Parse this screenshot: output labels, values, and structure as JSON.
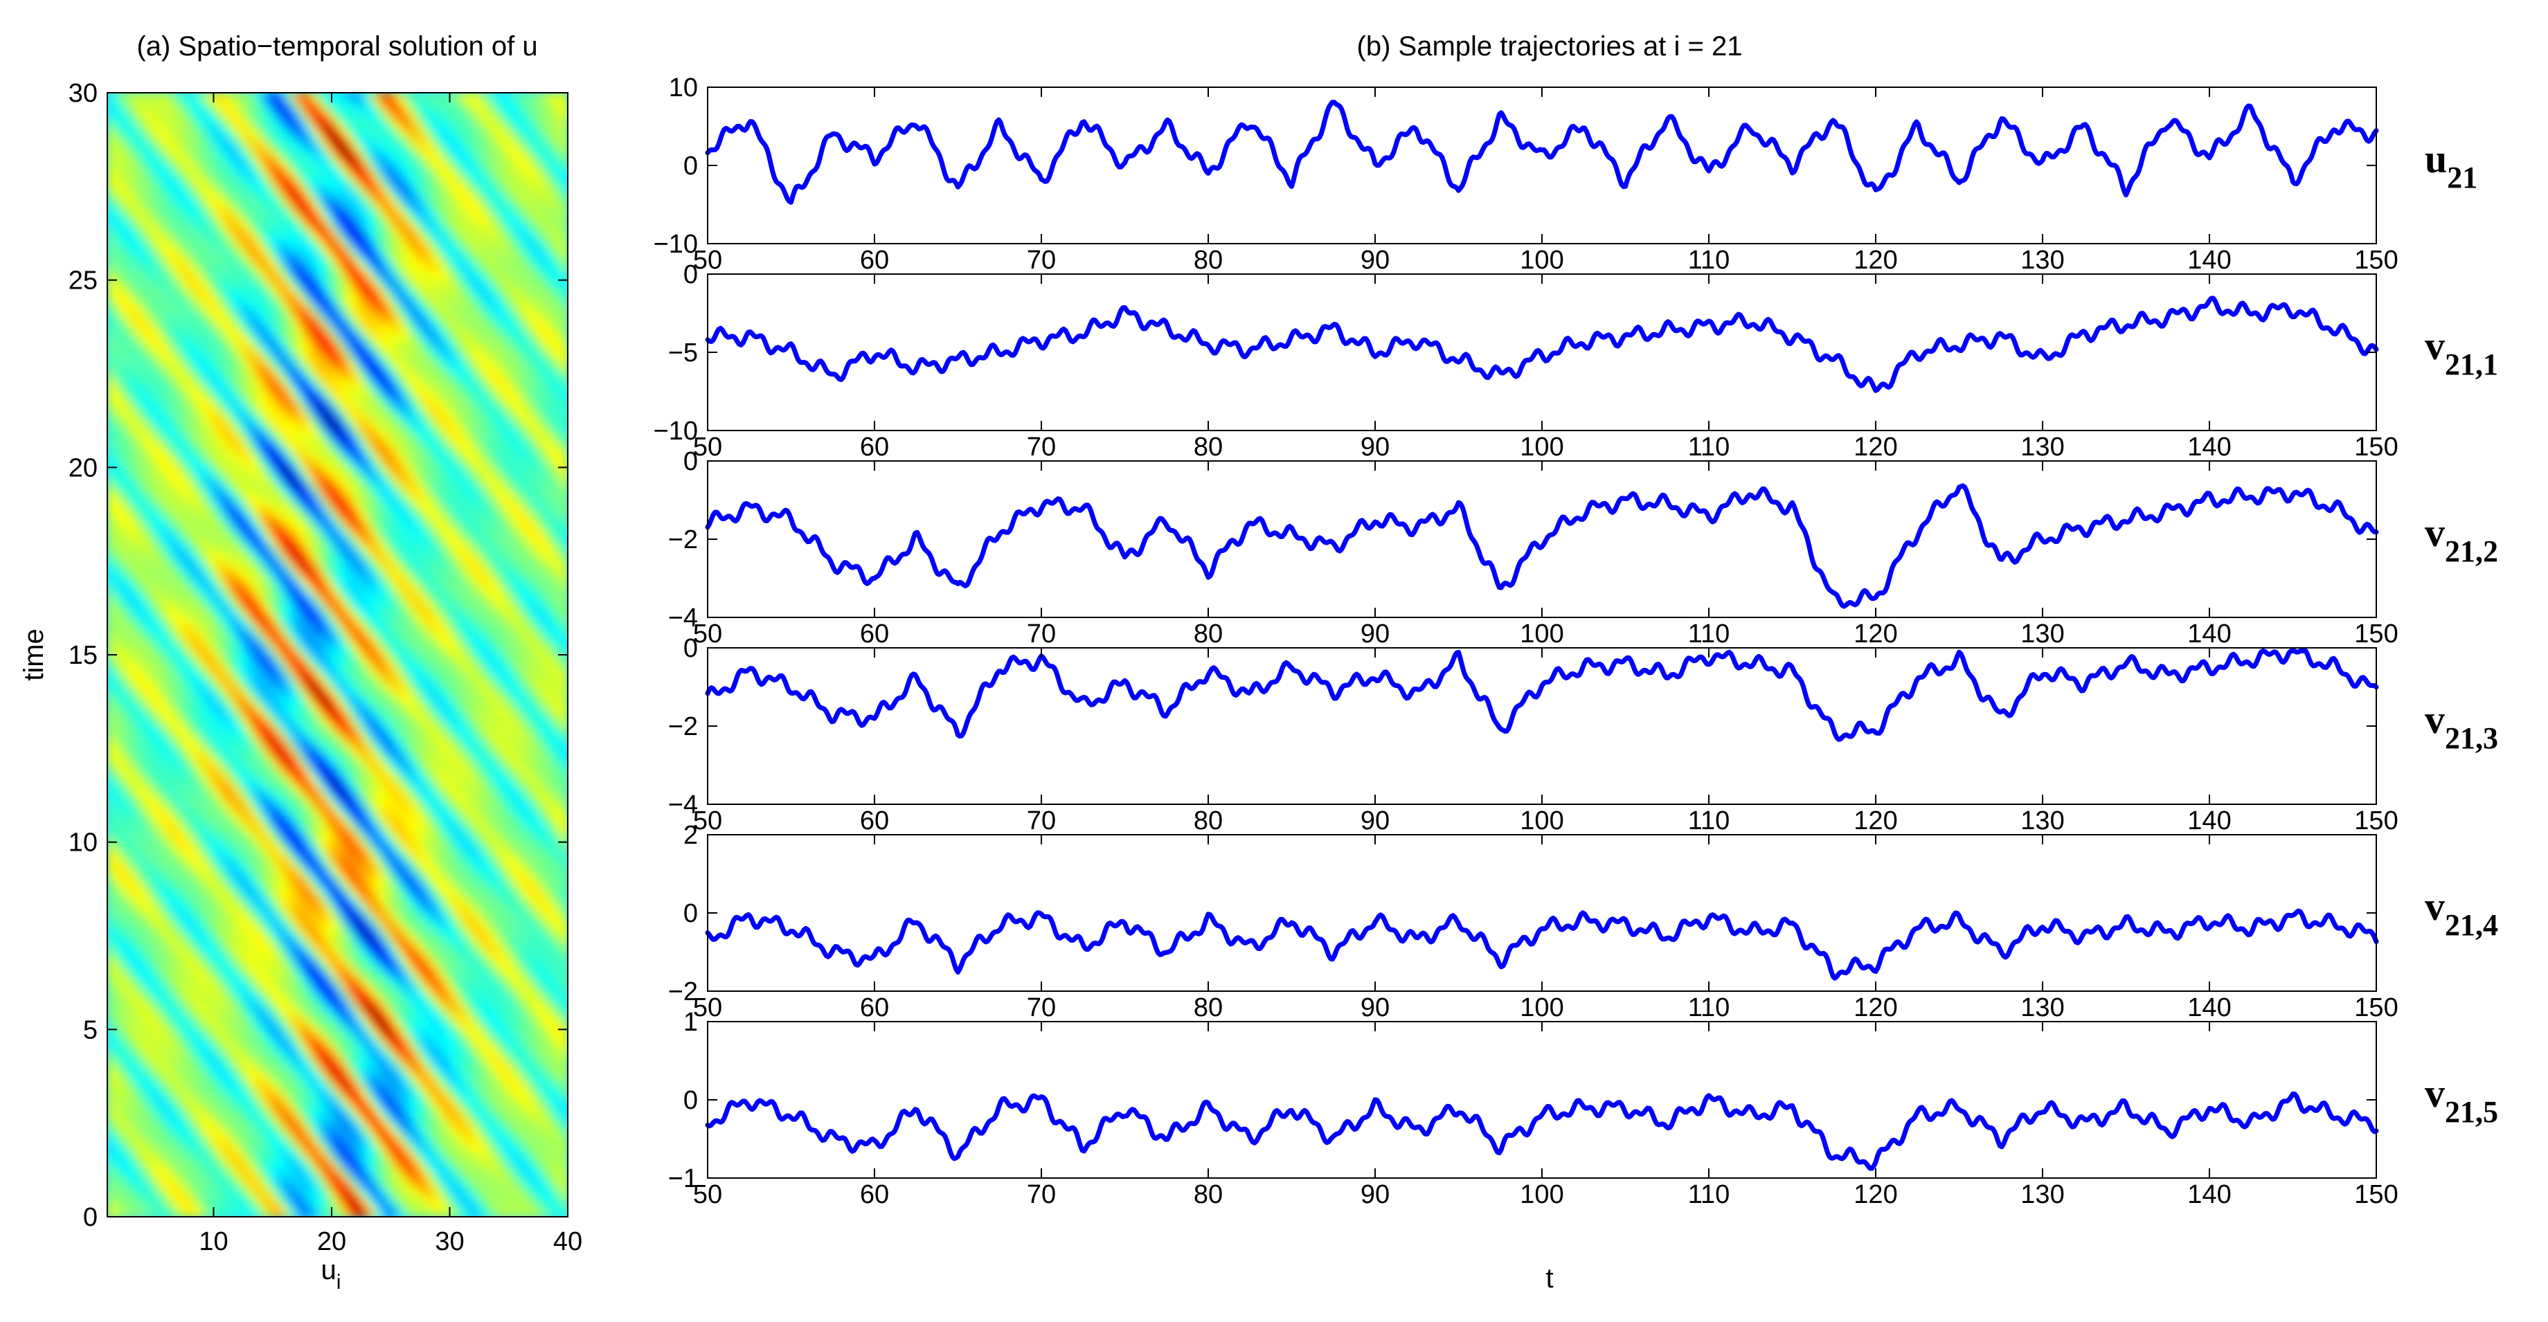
{
  "figure": {
    "left_panel": {
      "title": "(a) Spatio−temporal solution of u",
      "xlabel": "u",
      "xlabel_sub": "i",
      "ylabel": "time",
      "xticks": [
        "10",
        "20",
        "30",
        "40"
      ],
      "yticks": [
        "0",
        "5",
        "10",
        "15",
        "20",
        "25",
        "30"
      ]
    },
    "right_panel": {
      "title": "(b) Sample trajectories at i = 21",
      "xlabel": "t"
    }
  },
  "chart_data": [
    {
      "type": "heatmap",
      "title": "(a) Spatio−temporal solution of u",
      "xlabel": "u_i",
      "ylabel": "time",
      "xlim": [
        1,
        40
      ],
      "ylim": [
        0,
        30
      ],
      "colormap": "jet",
      "description_values": "chaotic Lorenz-96 type field, diagonal stripes drifting with time; strongest amplitudes concentrated near u_i = 15–25"
    },
    {
      "type": "line",
      "title": "(b) Sample trajectories at i = 21",
      "xlabel": "t",
      "xlim": [
        50,
        150
      ],
      "xticks": [
        50,
        60,
        70,
        80,
        90,
        100,
        110,
        120,
        130,
        140,
        150
      ],
      "color": "#0000ff",
      "series": [
        {
          "name": "u",
          "sub": "21",
          "ylim": [
            -10,
            10
          ],
          "yticks": [
            "10",
            "0",
            "−10"
          ],
          "x": [
            50,
            52.5,
            55,
            57.5,
            60,
            62.5,
            65,
            67.5,
            70,
            72.5,
            75,
            77.5,
            80,
            82.5,
            85,
            87.5,
            90,
            92.5,
            95,
            97.5,
            100,
            102.5,
            105,
            107.5,
            110,
            112.5,
            115,
            117.5,
            120,
            122.5,
            125,
            127.5,
            130,
            132.5,
            135,
            137.5,
            140,
            142.5,
            145,
            147.5,
            150
          ],
          "y": [
            2,
            6,
            -5,
            4,
            1,
            6,
            -3,
            5,
            -2,
            6,
            0,
            5,
            -1,
            6,
            -2,
            8,
            0,
            5,
            -3,
            6,
            1,
            5,
            -2,
            6,
            -1,
            5,
            0,
            6,
            -4,
            5,
            -2,
            6,
            0,
            5,
            -3,
            6,
            1,
            7,
            -2,
            5,
            4
          ]
        },
        {
          "name": "v",
          "sub": "21,1",
          "ylim": [
            -10,
            0
          ],
          "yticks": [
            "0",
            "−5",
            "−10"
          ],
          "x": [
            50,
            52.5,
            55,
            57.5,
            60,
            62.5,
            65,
            67.5,
            70,
            72.5,
            75,
            77.5,
            80,
            82.5,
            85,
            87.5,
            90,
            92.5,
            95,
            97.5,
            100,
            102.5,
            105,
            107.5,
            110,
            112.5,
            115,
            117.5,
            120,
            122.5,
            125,
            127.5,
            130,
            132.5,
            135,
            137.5,
            140,
            142.5,
            145,
            147.5,
            150
          ],
          "y": [
            -4,
            -4,
            -5,
            -6.5,
            -5,
            -6,
            -5.5,
            -5,
            -4.2,
            -3.8,
            -2.5,
            -3.5,
            -4.5,
            -4.8,
            -4.2,
            -3.5,
            -5,
            -4.2,
            -5.5,
            -6.5,
            -5.2,
            -4.3,
            -4,
            -3.6,
            -3.3,
            -3,
            -4,
            -5.5,
            -7.5,
            -5,
            -4.5,
            -4,
            -5.5,
            -3.8,
            -3.2,
            -2.8,
            -2,
            -2.5,
            -2.2,
            -3.5,
            -5
          ]
        },
        {
          "name": "v",
          "sub": "21,2",
          "ylim": [
            -4,
            0
          ],
          "yticks": [
            "0",
            "−2",
            "−4"
          ],
          "x": [
            50,
            52.5,
            55,
            57.5,
            60,
            62.5,
            65,
            67.5,
            70,
            72.5,
            75,
            77.5,
            80,
            82.5,
            85,
            87.5,
            90,
            92.5,
            95,
            97.5,
            100,
            102.5,
            105,
            107.5,
            110,
            112.5,
            115,
            117.5,
            120,
            122.5,
            125,
            127.5,
            130,
            132.5,
            135,
            137.5,
            140,
            142.5,
            145,
            147.5,
            150
          ],
          "y": [
            -1.6,
            -1.2,
            -1.5,
            -2.6,
            -3,
            -2,
            -3.3,
            -1.8,
            -1.1,
            -1.2,
            -2.5,
            -1.5,
            -2.8,
            -1.6,
            -1.9,
            -2.2,
            -1.5,
            -1.7,
            -1.2,
            -3.3,
            -2,
            -1.3,
            -1,
            -1.1,
            -1.4,
            -0.8,
            -1.2,
            -3.6,
            -3.5,
            -1.8,
            -0.6,
            -2.6,
            -2,
            -1.7,
            -1.5,
            -1.3,
            -1.0,
            -0.9,
            -0.8,
            -1.2,
            -1.9
          ]
        },
        {
          "name": "v",
          "sub": "21,3",
          "ylim": [
            -4,
            0
          ],
          "yticks": [
            "0",
            "−2",
            "−4"
          ],
          "x": [
            50,
            52.5,
            55,
            57.5,
            60,
            62.5,
            65,
            67.5,
            70,
            72.5,
            75,
            77.5,
            80,
            82.5,
            85,
            87.5,
            90,
            92.5,
            95,
            97.5,
            100,
            102.5,
            105,
            107.5,
            110,
            112.5,
            115,
            117.5,
            120,
            122.5,
            125,
            127.5,
            130,
            132.5,
            135,
            137.5,
            140,
            142.5,
            145,
            147.5,
            150
          ],
          "y": [
            -1.3,
            -0.6,
            -1,
            -1.7,
            -1.8,
            -0.8,
            -2.2,
            -0.5,
            -0.3,
            -1.5,
            -0.9,
            -1.6,
            -0.6,
            -1.2,
            -0.5,
            -1.1,
            -0.7,
            -1.2,
            -0.3,
            -2.1,
            -0.9,
            -0.5,
            -0.4,
            -0.7,
            -0.2,
            -0.4,
            -0.6,
            -2.2,
            -2.1,
            -0.8,
            -0.3,
            -1.8,
            -0.6,
            -0.9,
            -0.4,
            -0.7,
            -0.5,
            -0.3,
            -0.1,
            -0.5,
            -1.1
          ]
        },
        {
          "name": "v",
          "sub": "21,4",
          "ylim": [
            -2,
            2
          ],
          "yticks": [
            "2",
            "0",
            "−2"
          ],
          "x": [
            50,
            52.5,
            55,
            57.5,
            60,
            62.5,
            65,
            67.5,
            70,
            72.5,
            75,
            77.5,
            80,
            82.5,
            85,
            87.5,
            90,
            92.5,
            95,
            97.5,
            100,
            102.5,
            105,
            107.5,
            110,
            112.5,
            115,
            117.5,
            120,
            122.5,
            125,
            127.5,
            130,
            132.5,
            135,
            137.5,
            140,
            142.5,
            145,
            147.5,
            150
          ],
          "y": [
            -0.7,
            -0.1,
            -0.4,
            -1.0,
            -1.2,
            -0.2,
            -1.3,
            -0.3,
            -0.1,
            -0.9,
            -0.2,
            -1.0,
            -0.2,
            -0.9,
            -0.2,
            -1.0,
            -0.2,
            -0.7,
            -0.2,
            -1.2,
            -0.4,
            -0.2,
            -0.3,
            -0.6,
            -0.1,
            -0.5,
            -0.3,
            -1.5,
            -1.3,
            -0.4,
            -0.2,
            -1.0,
            -0.3,
            -0.6,
            -0.3,
            -0.5,
            -0.2,
            -0.4,
            -0.1,
            -0.3,
            -0.6
          ]
        },
        {
          "name": "v",
          "sub": "21,5",
          "ylim": [
            -1,
            1
          ],
          "yticks": [
            "1",
            "0",
            "−1"
          ],
          "x": [
            50,
            52.5,
            55,
            57.5,
            60,
            62.5,
            65,
            67.5,
            70,
            72.5,
            75,
            77.5,
            80,
            82.5,
            85,
            87.5,
            90,
            92.5,
            95,
            97.5,
            100,
            102.5,
            105,
            107.5,
            110,
            112.5,
            115,
            117.5,
            120,
            122.5,
            125,
            127.5,
            130,
            132.5,
            135,
            137.5,
            140,
            142.5,
            145,
            147.5,
            150
          ],
          "y": [
            -0.3,
            0,
            -0.2,
            -0.5,
            -0.6,
            -0.1,
            -0.7,
            -0.1,
            0,
            -0.6,
            -0.1,
            -0.5,
            -0.1,
            -0.5,
            -0.1,
            -0.5,
            -0.1,
            -0.4,
            -0.1,
            -0.6,
            -0.2,
            -0.1,
            -0.1,
            -0.3,
            0,
            -0.2,
            -0.1,
            -0.7,
            -0.8,
            -0.2,
            -0.1,
            -0.5,
            -0.1,
            -0.3,
            -0.1,
            -0.4,
            -0.1,
            -0.3,
            0,
            -0.2,
            -0.3
          ]
        }
      ]
    }
  ]
}
